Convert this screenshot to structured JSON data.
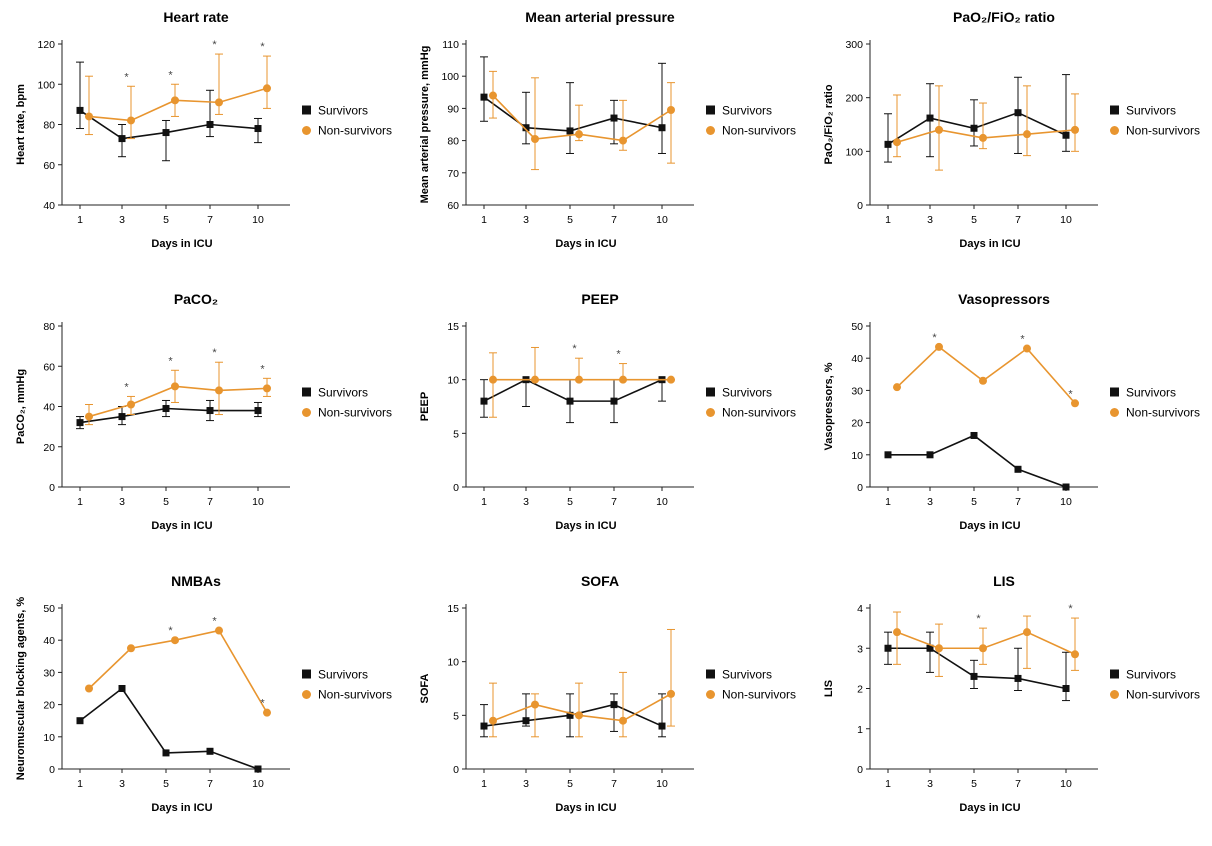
{
  "colors": {
    "survivors": "#111111",
    "non_survivors": "#E8952F"
  },
  "legend": {
    "survivors": "Survivors",
    "non_survivors": "Non-survivors"
  },
  "chart_data": [
    {
      "type": "line",
      "title": "Heart rate",
      "xlabel": "Days in ICU",
      "ylabel": "Heart rate, bpm",
      "x_ticks": [
        "1",
        "3",
        "5",
        "7",
        "10"
      ],
      "ylim": [
        40,
        120
      ],
      "yticks": [
        40,
        60,
        80,
        100,
        120
      ],
      "series": [
        {
          "name": "Survivors",
          "values": [
            87,
            73,
            76,
            80,
            78
          ],
          "err_low": [
            9,
            9,
            14,
            6,
            7
          ],
          "err_high": [
            24,
            7,
            6,
            17,
            5
          ]
        },
        {
          "name": "Non-survivors",
          "values": [
            84,
            82,
            92,
            91,
            98
          ],
          "err_low": [
            9,
            9,
            8,
            6,
            10
          ],
          "err_high": [
            20,
            17,
            8,
            24,
            16
          ]
        }
      ],
      "significant": [
        "3",
        "5",
        "7",
        "10"
      ]
    },
    {
      "type": "line",
      "title": "Mean arterial pressure",
      "xlabel": "Days in ICU",
      "ylabel": "Mean arterial pressure, mmHg",
      "x_ticks": [
        "1",
        "3",
        "5",
        "7",
        "10"
      ],
      "ylim": [
        60,
        110
      ],
      "yticks": [
        60,
        70,
        80,
        90,
        100,
        110
      ],
      "series": [
        {
          "name": "Survivors",
          "values": [
            93.5,
            84,
            83,
            87,
            84
          ],
          "err_low": [
            7.5,
            5,
            7,
            8,
            8
          ],
          "err_high": [
            12.5,
            11,
            15,
            5.5,
            20
          ]
        },
        {
          "name": "Non-survivors",
          "values": [
            94,
            80.5,
            82,
            80,
            89.5
          ],
          "err_low": [
            7,
            9.5,
            2,
            3,
            16.5
          ],
          "err_high": [
            7.5,
            19,
            9,
            12.5,
            8.5
          ]
        }
      ],
      "significant": []
    },
    {
      "type": "line",
      "title": "PaO₂/FiO₂ ratio",
      "xlabel": "Days in ICU",
      "ylabel": "PaO₂/FiO₂ ratio",
      "x_ticks": [
        "1",
        "3",
        "5",
        "7",
        "10"
      ],
      "ylim": [
        0,
        300
      ],
      "yticks": [
        0,
        100,
        200,
        300
      ],
      "series": [
        {
          "name": "Survivors",
          "values": [
            113,
            162,
            143,
            172,
            130
          ],
          "err_low": [
            33,
            72,
            33,
            76,
            30
          ],
          "err_high": [
            57,
            64,
            53,
            66,
            113
          ]
        },
        {
          "name": "Non-survivors",
          "values": [
            117,
            140,
            125,
            132,
            140
          ],
          "err_low": [
            27,
            75,
            20,
            40,
            40
          ],
          "err_high": [
            88,
            82,
            65,
            90,
            67
          ]
        }
      ],
      "significant": []
    },
    {
      "type": "line",
      "title": "PaCO₂",
      "xlabel": "Days in ICU",
      "ylabel": "PaCO₂, mmHg",
      "x_ticks": [
        "1",
        "3",
        "5",
        "7",
        "10"
      ],
      "ylim": [
        0,
        80
      ],
      "yticks": [
        0,
        20,
        40,
        60,
        80
      ],
      "series": [
        {
          "name": "Survivors",
          "values": [
            32,
            35,
            39,
            38,
            38
          ],
          "err_low": [
            3,
            4,
            4,
            5,
            3
          ],
          "err_high": [
            3,
            5,
            4,
            5,
            4
          ]
        },
        {
          "name": "Non-survivors",
          "values": [
            35,
            41,
            50,
            48,
            49
          ],
          "err_low": [
            4,
            5,
            8,
            12,
            4
          ],
          "err_high": [
            6,
            4,
            8,
            14,
            5
          ]
        }
      ],
      "significant": [
        "3",
        "5",
        "7",
        "10"
      ]
    },
    {
      "type": "line",
      "title": "PEEP",
      "xlabel": "Days in ICU",
      "ylabel": "PEEP",
      "x_ticks": [
        "1",
        "3",
        "5",
        "7",
        "10"
      ],
      "ylim": [
        0,
        15
      ],
      "yticks": [
        0,
        5,
        10,
        15
      ],
      "series": [
        {
          "name": "Survivors",
          "values": [
            8,
            10,
            8,
            8,
            10
          ],
          "err_low": [
            1.5,
            2.5,
            2,
            2,
            2
          ],
          "err_high": [
            2,
            0,
            2,
            2,
            0
          ]
        },
        {
          "name": "Non-survivors",
          "values": [
            10,
            10,
            10,
            10,
            10
          ],
          "err_low": [
            3.5,
            0,
            0,
            0,
            0
          ],
          "err_high": [
            2.5,
            3,
            2,
            1.5,
            0
          ]
        }
      ],
      "significant": [
        "5",
        "7"
      ]
    },
    {
      "type": "line",
      "title": "Vasopressors",
      "xlabel": "Days in ICU",
      "ylabel": "Vasopressors, %",
      "x_ticks": [
        "1",
        "3",
        "5",
        "7",
        "10"
      ],
      "ylim": [
        0,
        50
      ],
      "yticks": [
        0,
        10,
        20,
        30,
        40,
        50
      ],
      "series": [
        {
          "name": "Survivors",
          "values": [
            10,
            10,
            16,
            5.5,
            0
          ]
        },
        {
          "name": "Non-survivors",
          "values": [
            31,
            43.5,
            33,
            43,
            26
          ]
        }
      ],
      "significant": [
        "3",
        "7",
        "10"
      ]
    },
    {
      "type": "line",
      "title": "NMBAs",
      "xlabel": "Days in ICU",
      "ylabel": "Neuromuscular blocking agents, %",
      "x_ticks": [
        "1",
        "3",
        "5",
        "7",
        "10"
      ],
      "ylim": [
        0,
        50
      ],
      "yticks": [
        0,
        10,
        20,
        30,
        40,
        50
      ],
      "series": [
        {
          "name": "Survivors",
          "values": [
            15,
            25,
            5,
            5.5,
            0
          ]
        },
        {
          "name": "Non-survivors",
          "values": [
            25,
            37.5,
            40,
            43,
            17.5
          ]
        }
      ],
      "significant": [
        "5",
        "7",
        "10"
      ]
    },
    {
      "type": "line",
      "title": "SOFA",
      "xlabel": "Days in ICU",
      "ylabel": "SOFA",
      "x_ticks": [
        "1",
        "3",
        "5",
        "7",
        "10"
      ],
      "ylim": [
        0,
        15
      ],
      "yticks": [
        0,
        5,
        10,
        15
      ],
      "series": [
        {
          "name": "Survivors",
          "values": [
            4,
            4.5,
            5,
            6,
            4
          ],
          "err_low": [
            1,
            0.5,
            2,
            2.5,
            1
          ],
          "err_high": [
            2,
            2.5,
            2,
            1,
            3
          ]
        },
        {
          "name": "Non-survivors",
          "values": [
            4.5,
            6,
            5,
            4.5,
            7
          ],
          "err_low": [
            1.5,
            3,
            2,
            1.5,
            3
          ],
          "err_high": [
            3.5,
            1,
            3,
            4.5,
            6
          ]
        }
      ],
      "significant": []
    },
    {
      "type": "line",
      "title": "LIS",
      "xlabel": "Days in ICU",
      "ylabel": "LIS",
      "x_ticks": [
        "1",
        "3",
        "5",
        "7",
        "10"
      ],
      "ylim": [
        0,
        4
      ],
      "yticks": [
        0,
        1,
        2,
        3,
        4
      ],
      "series": [
        {
          "name": "Survivors",
          "values": [
            3,
            3,
            2.3,
            2.25,
            2
          ],
          "err_low": [
            0.4,
            0.6,
            0.3,
            0.3,
            0.3
          ],
          "err_high": [
            0.4,
            0.4,
            0.4,
            0.75,
            0.9
          ]
        },
        {
          "name": "Non-survivors",
          "values": [
            3.4,
            3,
            3,
            3.4,
            2.85
          ],
          "err_low": [
            0.8,
            0.7,
            0.4,
            0.9,
            0.4
          ],
          "err_high": [
            0.5,
            0.6,
            0.5,
            0.4,
            0.9
          ]
        }
      ],
      "significant": [
        "5",
        "10"
      ]
    }
  ]
}
